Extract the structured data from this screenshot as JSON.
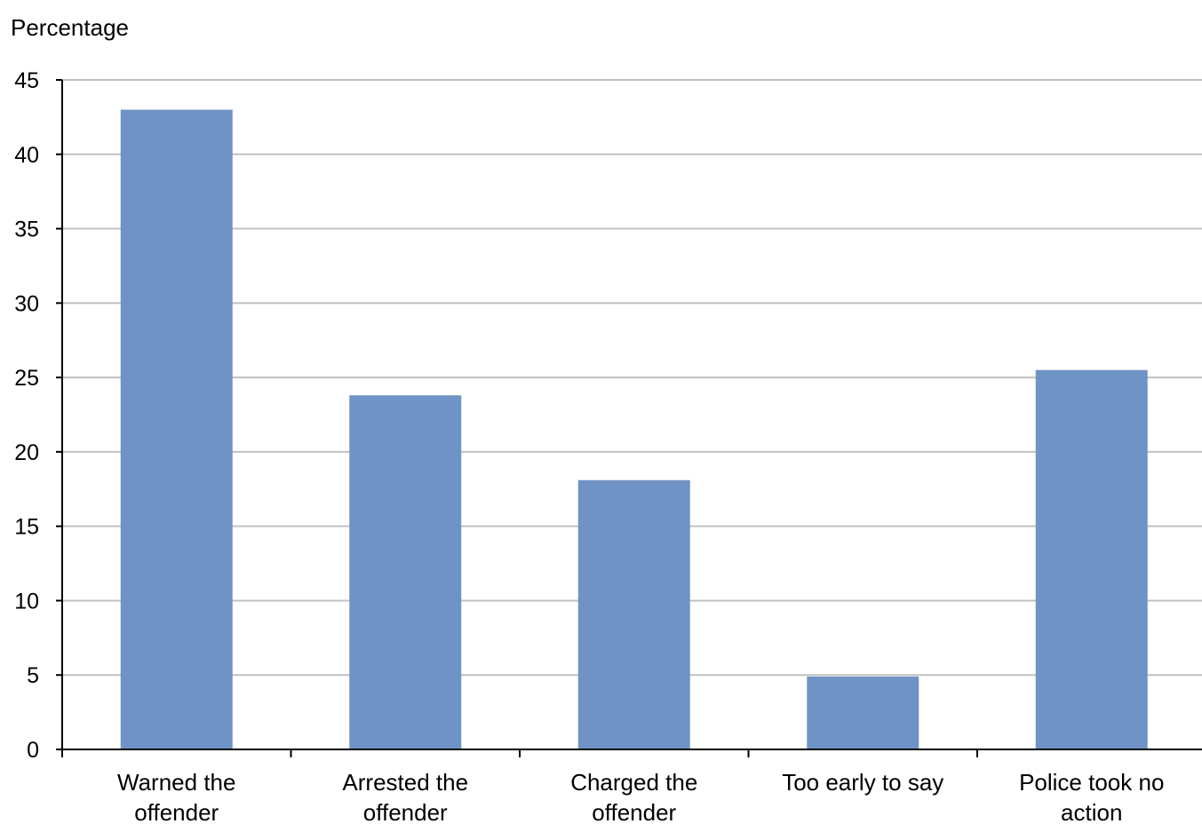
{
  "chart_data": {
    "type": "bar",
    "ylabel": "Percentage",
    "xlabel": "",
    "categories": [
      [
        "Warned the",
        "offender"
      ],
      [
        "Arrested the",
        "offender"
      ],
      [
        "Charged the",
        "offender"
      ],
      [
        "Too early to say"
      ],
      [
        "Police took no",
        "action"
      ]
    ],
    "values": [
      43,
      23.8,
      18.1,
      4.9,
      25.5
    ],
    "ylim": [
      0,
      45
    ],
    "yticks": [
      0,
      5,
      10,
      15,
      20,
      25,
      30,
      35,
      40,
      45
    ],
    "grid": true,
    "legend": "none",
    "bar_color": "#7093c5",
    "grid_color": "#c0c0c0",
    "axis_color": "#000000"
  }
}
